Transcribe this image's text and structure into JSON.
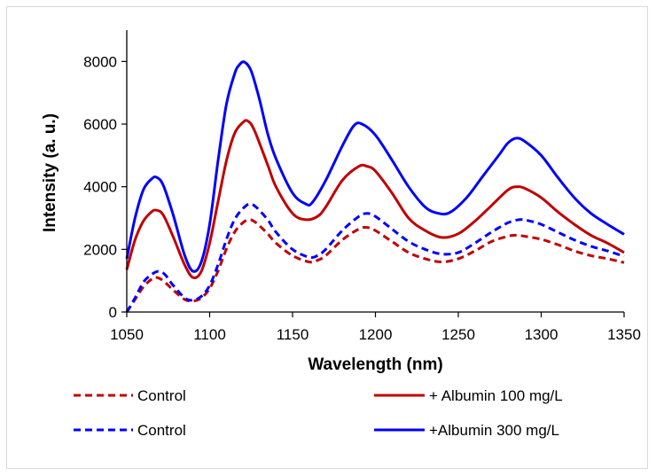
{
  "chart_data": {
    "type": "line",
    "xlabel": "Wavelength (nm)",
    "ylabel": "Intensity (a. u.)",
    "xlim": [
      1050,
      1350
    ],
    "ylim": [
      0,
      9000
    ],
    "xticks": [
      "1050",
      "1100",
      "1150",
      "1200",
      "1250",
      "1300",
      "1350"
    ],
    "yticks": [
      "0",
      "2000",
      "4000",
      "6000",
      "8000"
    ],
    "legend_position": "bottom",
    "series": [
      {
        "name": "Control",
        "color": "#c00000",
        "dash": true,
        "x": [
          1050,
          1055,
          1060,
          1065,
          1068,
          1072,
          1078,
          1085,
          1090,
          1095,
          1100,
          1105,
          1110,
          1115,
          1120,
          1124,
          1128,
          1135,
          1140,
          1150,
          1160,
          1165,
          1170,
          1180,
          1190,
          1195,
          1200,
          1210,
          1220,
          1230,
          1240,
          1250,
          1260,
          1270,
          1280,
          1285,
          1290,
          1300,
          1310,
          1320,
          1330,
          1340,
          1350
        ],
        "y": [
          0,
          400,
          800,
          1050,
          1100,
          1000,
          700,
          400,
          350,
          450,
          750,
          1300,
          2000,
          2550,
          2850,
          2950,
          2850,
          2500,
          2200,
          1800,
          1600,
          1650,
          1800,
          2300,
          2650,
          2700,
          2600,
          2250,
          1900,
          1700,
          1600,
          1700,
          1950,
          2250,
          2420,
          2450,
          2420,
          2320,
          2150,
          1950,
          1800,
          1700,
          1580
        ]
      },
      {
        "name": "+ Albumin 100 mg/L",
        "color": "#c00000",
        "dash": false,
        "x": [
          1050,
          1055,
          1060,
          1065,
          1068,
          1072,
          1078,
          1085,
          1090,
          1095,
          1100,
          1105,
          1110,
          1115,
          1120,
          1123,
          1127,
          1135,
          1140,
          1150,
          1158,
          1165,
          1170,
          1180,
          1190,
          1195,
          1200,
          1210,
          1220,
          1230,
          1240,
          1250,
          1260,
          1270,
          1280,
          1285,
          1290,
          1300,
          1310,
          1320,
          1330,
          1340,
          1350
        ],
        "y": [
          1350,
          2300,
          2900,
          3200,
          3250,
          3100,
          2400,
          1500,
          1100,
          1300,
          2200,
          3500,
          4800,
          5700,
          6050,
          6100,
          5800,
          4700,
          4000,
          3150,
          2950,
          3050,
          3350,
          4200,
          4650,
          4650,
          4500,
          3800,
          3000,
          2600,
          2380,
          2500,
          2900,
          3400,
          3900,
          4000,
          3950,
          3650,
          3200,
          2800,
          2450,
          2200,
          1900
        ]
      },
      {
        "name": "Control",
        "color": "#0000ff",
        "dash": true,
        "x": [
          1050,
          1055,
          1060,
          1065,
          1069,
          1073,
          1078,
          1085,
          1090,
          1095,
          1100,
          1105,
          1110,
          1115,
          1120,
          1124,
          1128,
          1135,
          1140,
          1150,
          1160,
          1165,
          1170,
          1180,
          1190,
          1195,
          1200,
          1210,
          1220,
          1230,
          1240,
          1250,
          1260,
          1270,
          1280,
          1287,
          1292,
          1300,
          1310,
          1320,
          1330,
          1340,
          1350
        ],
        "y": [
          0,
          450,
          950,
          1200,
          1300,
          1200,
          850,
          450,
          380,
          500,
          850,
          1500,
          2300,
          2950,
          3300,
          3450,
          3350,
          2950,
          2550,
          2000,
          1750,
          1800,
          2000,
          2600,
          3050,
          3150,
          3050,
          2650,
          2250,
          2000,
          1850,
          1900,
          2200,
          2550,
          2850,
          2950,
          2920,
          2800,
          2550,
          2300,
          2100,
          1950,
          1780
        ]
      },
      {
        "name": "+Albumin 300 mg/L",
        "color": "#0000ff",
        "dash": false,
        "x": [
          1050,
          1055,
          1060,
          1065,
          1068,
          1072,
          1078,
          1085,
          1090,
          1095,
          1100,
          1105,
          1110,
          1115,
          1118,
          1121,
          1125,
          1130,
          1135,
          1140,
          1150,
          1158,
          1162,
          1170,
          1180,
          1187,
          1192,
          1200,
          1210,
          1220,
          1230,
          1238,
          1245,
          1255,
          1265,
          1275,
          1280,
          1285,
          1290,
          1300,
          1310,
          1320,
          1330,
          1340,
          1350
        ],
        "y": [
          1700,
          3000,
          3900,
          4250,
          4300,
          4050,
          3100,
          1800,
          1300,
          1600,
          2800,
          4800,
          6600,
          7600,
          7900,
          7980,
          7700,
          6800,
          5700,
          4900,
          3800,
          3450,
          3500,
          4200,
          5300,
          5950,
          6000,
          5650,
          4850,
          4000,
          3350,
          3150,
          3180,
          3650,
          4350,
          5050,
          5400,
          5550,
          5450,
          5000,
          4300,
          3650,
          3150,
          2800,
          2480
        ]
      }
    ]
  }
}
